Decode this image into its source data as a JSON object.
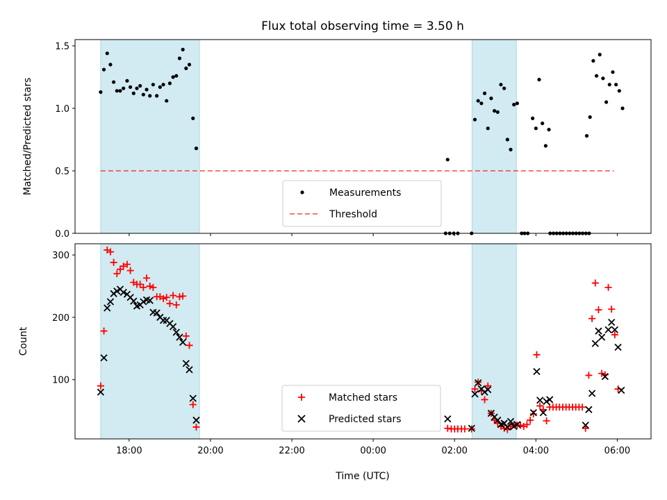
{
  "title": "Flux total observing time = 3.50 h",
  "xlabel": "Time (UTC)",
  "xticklabels": [
    "18:00",
    "20:00",
    "22:00",
    "00:00",
    "02:00",
    "04:00",
    "06:00"
  ],
  "colors": {
    "shade": "#add8e6",
    "threshold": "#ff0000",
    "matched": "#ff0000",
    "predicted": "#000000",
    "measurement": "#000000"
  },
  "chart_data": [
    {
      "type": "scatter",
      "ylabel": "Matched/Predicted stars",
      "xlim": [
        16.67,
        30.83
      ],
      "ylim": [
        0,
        1.55
      ],
      "yticks": [
        0,
        0.5,
        1.0,
        1.5
      ],
      "ytick_labels": [
        "0.0",
        "0.5",
        "1.0",
        "1.5"
      ],
      "shaded_intervals": [
        [
          17.3,
          19.73
        ],
        [
          26.43,
          27.52
        ]
      ],
      "threshold": {
        "value": 0.5,
        "x_range": [
          17.3,
          29.92
        ],
        "style": "dashed"
      },
      "legend": {
        "position": "lower-center",
        "entries": [
          "Measurements",
          "Threshold"
        ]
      },
      "series": [
        {
          "name": "Measurements",
          "marker": "dot",
          "points": [
            [
              17.3,
              1.13
            ],
            [
              17.38,
              1.31
            ],
            [
              17.46,
              1.44
            ],
            [
              17.54,
              1.35
            ],
            [
              17.62,
              1.21
            ],
            [
              17.7,
              1.14
            ],
            [
              17.78,
              1.14
            ],
            [
              17.86,
              1.16
            ],
            [
              17.95,
              1.22
            ],
            [
              18.03,
              1.17
            ],
            [
              18.11,
              1.12
            ],
            [
              18.19,
              1.16
            ],
            [
              18.27,
              1.18
            ],
            [
              18.35,
              1.11
            ],
            [
              18.43,
              1.15
            ],
            [
              18.51,
              1.1
            ],
            [
              18.59,
              1.19
            ],
            [
              18.68,
              1.1
            ],
            [
              18.76,
              1.17
            ],
            [
              18.84,
              1.19
            ],
            [
              18.92,
              1.06
            ],
            [
              19.0,
              1.2
            ],
            [
              19.08,
              1.25
            ],
            [
              19.16,
              1.26
            ],
            [
              19.24,
              1.4
            ],
            [
              19.32,
              1.47
            ],
            [
              19.4,
              1.32
            ],
            [
              19.48,
              1.35
            ],
            [
              19.57,
              0.92
            ],
            [
              19.65,
              0.68
            ],
            [
              26.5,
              0.91
            ],
            [
              26.58,
              1.06
            ],
            [
              26.66,
              1.04
            ],
            [
              26.74,
              1.12
            ],
            [
              26.82,
              0.84
            ],
            [
              26.9,
              1.08
            ],
            [
              26.98,
              0.98
            ],
            [
              27.06,
              0.97
            ],
            [
              27.14,
              1.19
            ],
            [
              27.22,
              1.16
            ],
            [
              27.3,
              0.75
            ],
            [
              27.38,
              0.67
            ],
            [
              27.46,
              1.03
            ],
            [
              27.54,
              1.04
            ],
            [
              25.83,
              0.59
            ],
            [
              27.92,
              0.92
            ],
            [
              28.0,
              0.84
            ],
            [
              28.08,
              1.23
            ],
            [
              28.16,
              0.88
            ],
            [
              28.24,
              0.7
            ],
            [
              28.32,
              0.83
            ],
            [
              29.25,
              0.78
            ],
            [
              29.33,
              0.93
            ],
            [
              29.41,
              1.38
            ],
            [
              29.49,
              1.26
            ],
            [
              29.57,
              1.43
            ],
            [
              29.65,
              1.24
            ],
            [
              29.73,
              1.05
            ],
            [
              29.81,
              1.19
            ],
            [
              29.89,
              1.29
            ],
            [
              29.97,
              1.19
            ],
            [
              30.05,
              1.14
            ],
            [
              30.13,
              1.0
            ],
            [
              25.78,
              0.0
            ],
            [
              25.88,
              0.0
            ],
            [
              25.98,
              0.0
            ],
            [
              26.08,
              0.0
            ],
            [
              26.42,
              0.0
            ],
            [
              27.65,
              0.0
            ],
            [
              27.72,
              0.0
            ],
            [
              27.8,
              0.0
            ],
            [
              28.35,
              0.0
            ],
            [
              28.43,
              0.0
            ],
            [
              28.51,
              0.0
            ],
            [
              28.59,
              0.0
            ],
            [
              28.67,
              0.0
            ],
            [
              28.75,
              0.0
            ],
            [
              28.83,
              0.0
            ],
            [
              28.91,
              0.0
            ],
            [
              28.99,
              0.0
            ],
            [
              29.07,
              0.0
            ],
            [
              29.15,
              0.0
            ],
            [
              29.23,
              0.0
            ],
            [
              29.31,
              0.0
            ]
          ]
        }
      ]
    },
    {
      "type": "scatter",
      "ylabel": "Count",
      "xlim": [
        16.67,
        30.83
      ],
      "ylim": [
        5,
        318
      ],
      "yticks": [
        100,
        200,
        300
      ],
      "ytick_labels": [
        "100",
        "200",
        "300"
      ],
      "shaded_intervals": [
        [
          17.3,
          19.73
        ],
        [
          26.43,
          27.52
        ]
      ],
      "legend": {
        "position": "lower-center",
        "entries": [
          "Matched stars",
          "Predicted stars"
        ]
      },
      "series": [
        {
          "name": "Matched stars",
          "marker": "plus",
          "points": [
            [
              17.3,
              90
            ],
            [
              17.38,
              178
            ],
            [
              17.46,
              308
            ],
            [
              17.54,
              305
            ],
            [
              17.62,
              288
            ],
            [
              17.7,
              270
            ],
            [
              17.78,
              277
            ],
            [
              17.86,
              282
            ],
            [
              17.95,
              285
            ],
            [
              18.03,
              275
            ],
            [
              18.11,
              256
            ],
            [
              18.19,
              253
            ],
            [
              18.27,
              253
            ],
            [
              18.35,
              248
            ],
            [
              18.43,
              263
            ],
            [
              18.51,
              250
            ],
            [
              18.59,
              248
            ],
            [
              18.68,
              233
            ],
            [
              18.76,
              233
            ],
            [
              18.84,
              230
            ],
            [
              18.92,
              232
            ],
            [
              19.0,
              222
            ],
            [
              19.08,
              235
            ],
            [
              19.16,
              220
            ],
            [
              19.24,
              233
            ],
            [
              19.32,
              234
            ],
            [
              19.4,
              170
            ],
            [
              19.48,
              155
            ],
            [
              19.57,
              60
            ],
            [
              19.65,
              24
            ],
            [
              25.83,
              22
            ],
            [
              25.92,
              21
            ],
            [
              26.0,
              21
            ],
            [
              26.08,
              21
            ],
            [
              26.17,
              21
            ],
            [
              26.25,
              21
            ],
            [
              26.42,
              21
            ],
            [
              26.5,
              85
            ],
            [
              26.58,
              96
            ],
            [
              26.66,
              82
            ],
            [
              26.74,
              68
            ],
            [
              26.82,
              90
            ],
            [
              26.9,
              46
            ],
            [
              26.98,
              35
            ],
            [
              27.06,
              30
            ],
            [
              27.14,
              25
            ],
            [
              27.22,
              22
            ],
            [
              27.3,
              20
            ],
            [
              27.38,
              25
            ],
            [
              27.46,
              28
            ],
            [
              27.54,
              27
            ],
            [
              27.62,
              27
            ],
            [
              27.7,
              25
            ],
            [
              27.78,
              28
            ],
            [
              27.86,
              35
            ],
            [
              27.94,
              45
            ],
            [
              28.02,
              140
            ],
            [
              28.1,
              58
            ],
            [
              28.18,
              52
            ],
            [
              28.26,
              34
            ],
            [
              28.34,
              56
            ],
            [
              28.42,
              56
            ],
            [
              28.5,
              56
            ],
            [
              28.58,
              56
            ],
            [
              28.66,
              56
            ],
            [
              28.74,
              56
            ],
            [
              28.82,
              56
            ],
            [
              28.9,
              56
            ],
            [
              28.98,
              56
            ],
            [
              29.06,
              56
            ],
            [
              29.14,
              56
            ],
            [
              29.22,
              22
            ],
            [
              29.3,
              107
            ],
            [
              29.38,
              198
            ],
            [
              29.46,
              255
            ],
            [
              29.54,
              212
            ],
            [
              29.62,
              110
            ],
            [
              29.7,
              108
            ],
            [
              29.78,
              248
            ],
            [
              29.86,
              213
            ],
            [
              29.94,
              172
            ],
            [
              30.02,
              85
            ]
          ]
        },
        {
          "name": "Predicted stars",
          "marker": "x",
          "points": [
            [
              17.3,
              80
            ],
            [
              17.38,
              135
            ],
            [
              17.46,
              215
            ],
            [
              17.54,
              225
            ],
            [
              17.62,
              238
            ],
            [
              17.7,
              242
            ],
            [
              17.78,
              245
            ],
            [
              17.86,
              240
            ],
            [
              17.95,
              237
            ],
            [
              18.03,
              232
            ],
            [
              18.11,
              226
            ],
            [
              18.19,
              218
            ],
            [
              18.27,
              220
            ],
            [
              18.35,
              225
            ],
            [
              18.43,
              228
            ],
            [
              18.51,
              227
            ],
            [
              18.59,
              208
            ],
            [
              18.68,
              207
            ],
            [
              18.76,
              200
            ],
            [
              18.84,
              195
            ],
            [
              18.92,
              195
            ],
            [
              19.0,
              190
            ],
            [
              19.08,
              185
            ],
            [
              19.16,
              176
            ],
            [
              19.24,
              168
            ],
            [
              19.32,
              160
            ],
            [
              19.4,
              126
            ],
            [
              19.48,
              116
            ],
            [
              19.57,
              70
            ],
            [
              19.65,
              35
            ],
            [
              25.83,
              37
            ],
            [
              26.42,
              22
            ],
            [
              26.5,
              77
            ],
            [
              26.58,
              95
            ],
            [
              26.66,
              85
            ],
            [
              26.74,
              80
            ],
            [
              26.82,
              84
            ],
            [
              26.9,
              46
            ],
            [
              26.98,
              40
            ],
            [
              27.06,
              35
            ],
            [
              27.14,
              28
            ],
            [
              27.22,
              30
            ],
            [
              27.3,
              24
            ],
            [
              27.38,
              33
            ],
            [
              27.46,
              25
            ],
            [
              27.54,
              28
            ],
            [
              27.94,
              47
            ],
            [
              28.02,
              113
            ],
            [
              28.1,
              67
            ],
            [
              28.18,
              47
            ],
            [
              28.26,
              65
            ],
            [
              28.34,
              68
            ],
            [
              29.22,
              27
            ],
            [
              29.3,
              52
            ],
            [
              29.38,
              78
            ],
            [
              29.46,
              158
            ],
            [
              29.54,
              178
            ],
            [
              29.62,
              168
            ],
            [
              29.7,
              105
            ],
            [
              29.78,
              180
            ],
            [
              29.86,
              192
            ],
            [
              29.94,
              180
            ],
            [
              30.02,
              152
            ],
            [
              30.1,
              83
            ]
          ]
        }
      ]
    }
  ]
}
